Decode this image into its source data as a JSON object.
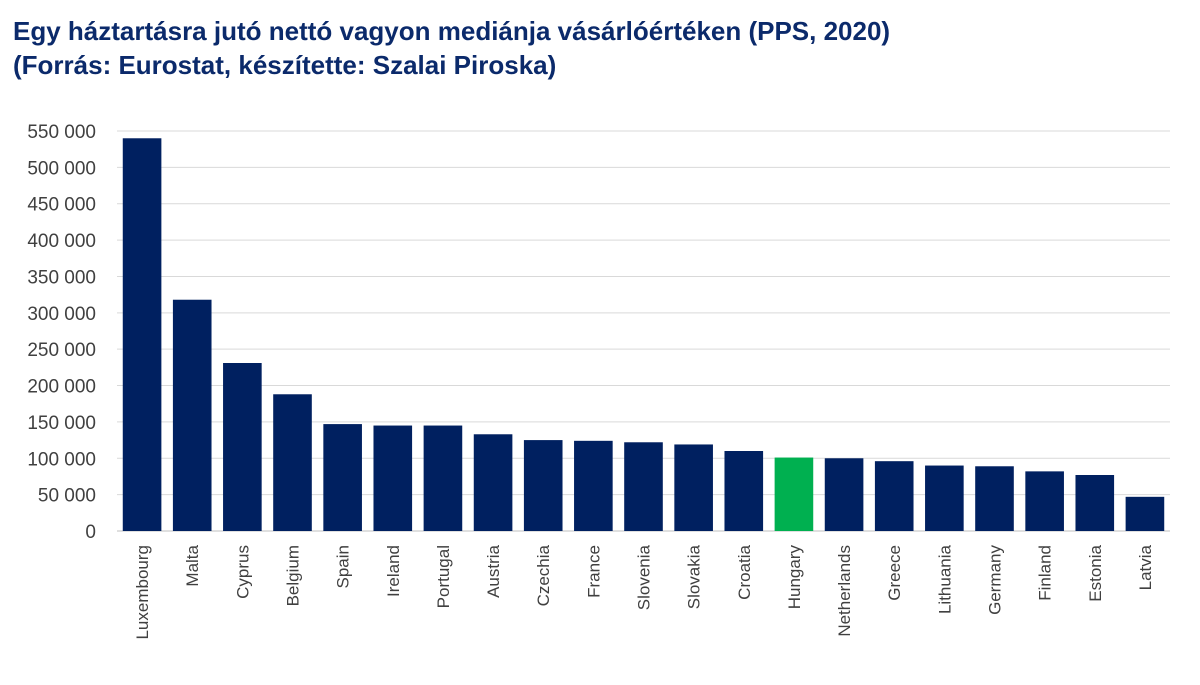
{
  "chart_data": {
    "type": "bar",
    "title": "Egy háztartásra jutó nettó vagyon mediánja vásárlóértéken (PPS, 2020)",
    "subtitle": "(Forrás: Eurostat, készítette: Szalai Piroska)",
    "categories": [
      "Luxembourg",
      "Malta",
      "Cyprus",
      "Belgium",
      "Spain",
      "Ireland",
      "Portugal",
      "Austria",
      "Czechia",
      "France",
      "Slovenia",
      "Slovakia",
      "Croatia",
      "Hungary",
      "Netherlands",
      "Greece",
      "Lithuania",
      "Germany",
      "Finland",
      "Estonia",
      "Latvia"
    ],
    "values": [
      540000,
      318000,
      231000,
      188000,
      147000,
      145000,
      145000,
      133000,
      125000,
      124000,
      122000,
      119000,
      110000,
      101000,
      100000,
      96000,
      90000,
      89000,
      82000,
      77000,
      47000
    ],
    "ylim": [
      0,
      550000
    ],
    "yticks": [
      "0",
      "50 000",
      "100 000",
      "150 000",
      "200 000",
      "250 000",
      "300 000",
      "350 000",
      "400 000",
      "450 000",
      "500 000",
      "550 000"
    ],
    "ytick_values": [
      0,
      50000,
      100000,
      150000,
      200000,
      250000,
      300000,
      350000,
      400000,
      450000,
      500000,
      550000
    ],
    "grid": true,
    "colors": {
      "default": "#002060",
      "highlight": "#00b050",
      "title": "#0b2a6b"
    },
    "highlight_category": "Hungary"
  }
}
